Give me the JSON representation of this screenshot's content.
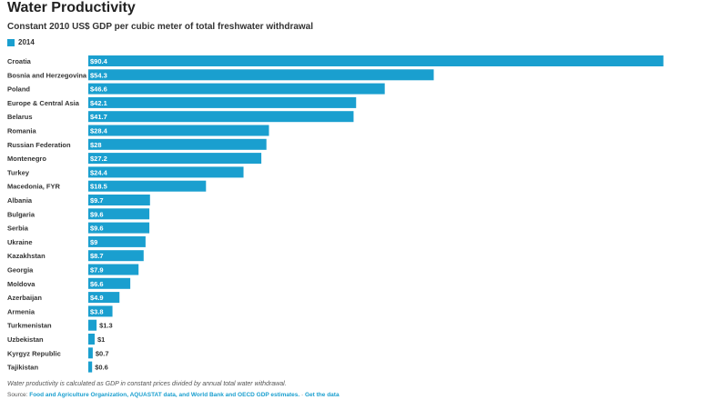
{
  "title": "Water Productivity",
  "subtitle": "Constant 2010 US$ GDP per cubic meter of total freshwater withdrawal",
  "footnote": "Water productivity is calculated as GDP in constant prices divided by annual total water withdrawal.",
  "source": {
    "prefix": "Source: ",
    "link_text": "Food and Agriculture Organization, AQUASTAT data, and World Bank and OECD GDP estimates.",
    "separator": " · ",
    "get_data": "Get the data"
  },
  "colors": {
    "bar": "#1a9fcf",
    "label_dark": "#333333"
  },
  "chart_data": {
    "type": "bar",
    "orientation": "horizontal",
    "title": "Water Productivity",
    "subtitle": "Constant 2010 US$ GDP per cubic meter of total freshwater withdrawal",
    "legend": {
      "entries": [
        "2014"
      ],
      "placement": "top-left"
    },
    "grid": false,
    "xlim": [
      0,
      91
    ],
    "categories": [
      "Croatia",
      "Bosnia and Herzegovina",
      "Poland",
      "Europe & Central Asia",
      "Belarus",
      "Romania",
      "Russian Federation",
      "Montenegro",
      "Turkey",
      "Macedonia, FYR",
      "Albania",
      "Bulgaria",
      "Serbia",
      "Ukraine",
      "Kazakhstan",
      "Georgia",
      "Moldova",
      "Azerbaijan",
      "Armenia",
      "Turkmenistan",
      "Uzbekistan",
      "Kyrgyz Republic",
      "Tajikistan"
    ],
    "series": [
      {
        "name": "2014",
        "values": [
          90.4,
          54.3,
          46.6,
          42.1,
          41.7,
          28.4,
          28,
          27.2,
          24.4,
          18.5,
          9.7,
          9.6,
          9.6,
          9,
          8.7,
          7.9,
          6.6,
          4.9,
          3.8,
          1.3,
          1,
          0.7,
          0.6
        ],
        "labels": [
          "$90.4",
          "$54.3",
          "$46.6",
          "$42.1",
          "$41.7",
          "$28.4",
          "$28",
          "$27.2",
          "$24.4",
          "$18.5",
          "$9.7",
          "$9.6",
          "$9.6",
          "$9",
          "$8.7",
          "$7.9",
          "$6.6",
          "$4.9",
          "$3.8",
          "$1.3",
          "$1",
          "$0.7",
          "$0.6"
        ]
      }
    ]
  }
}
